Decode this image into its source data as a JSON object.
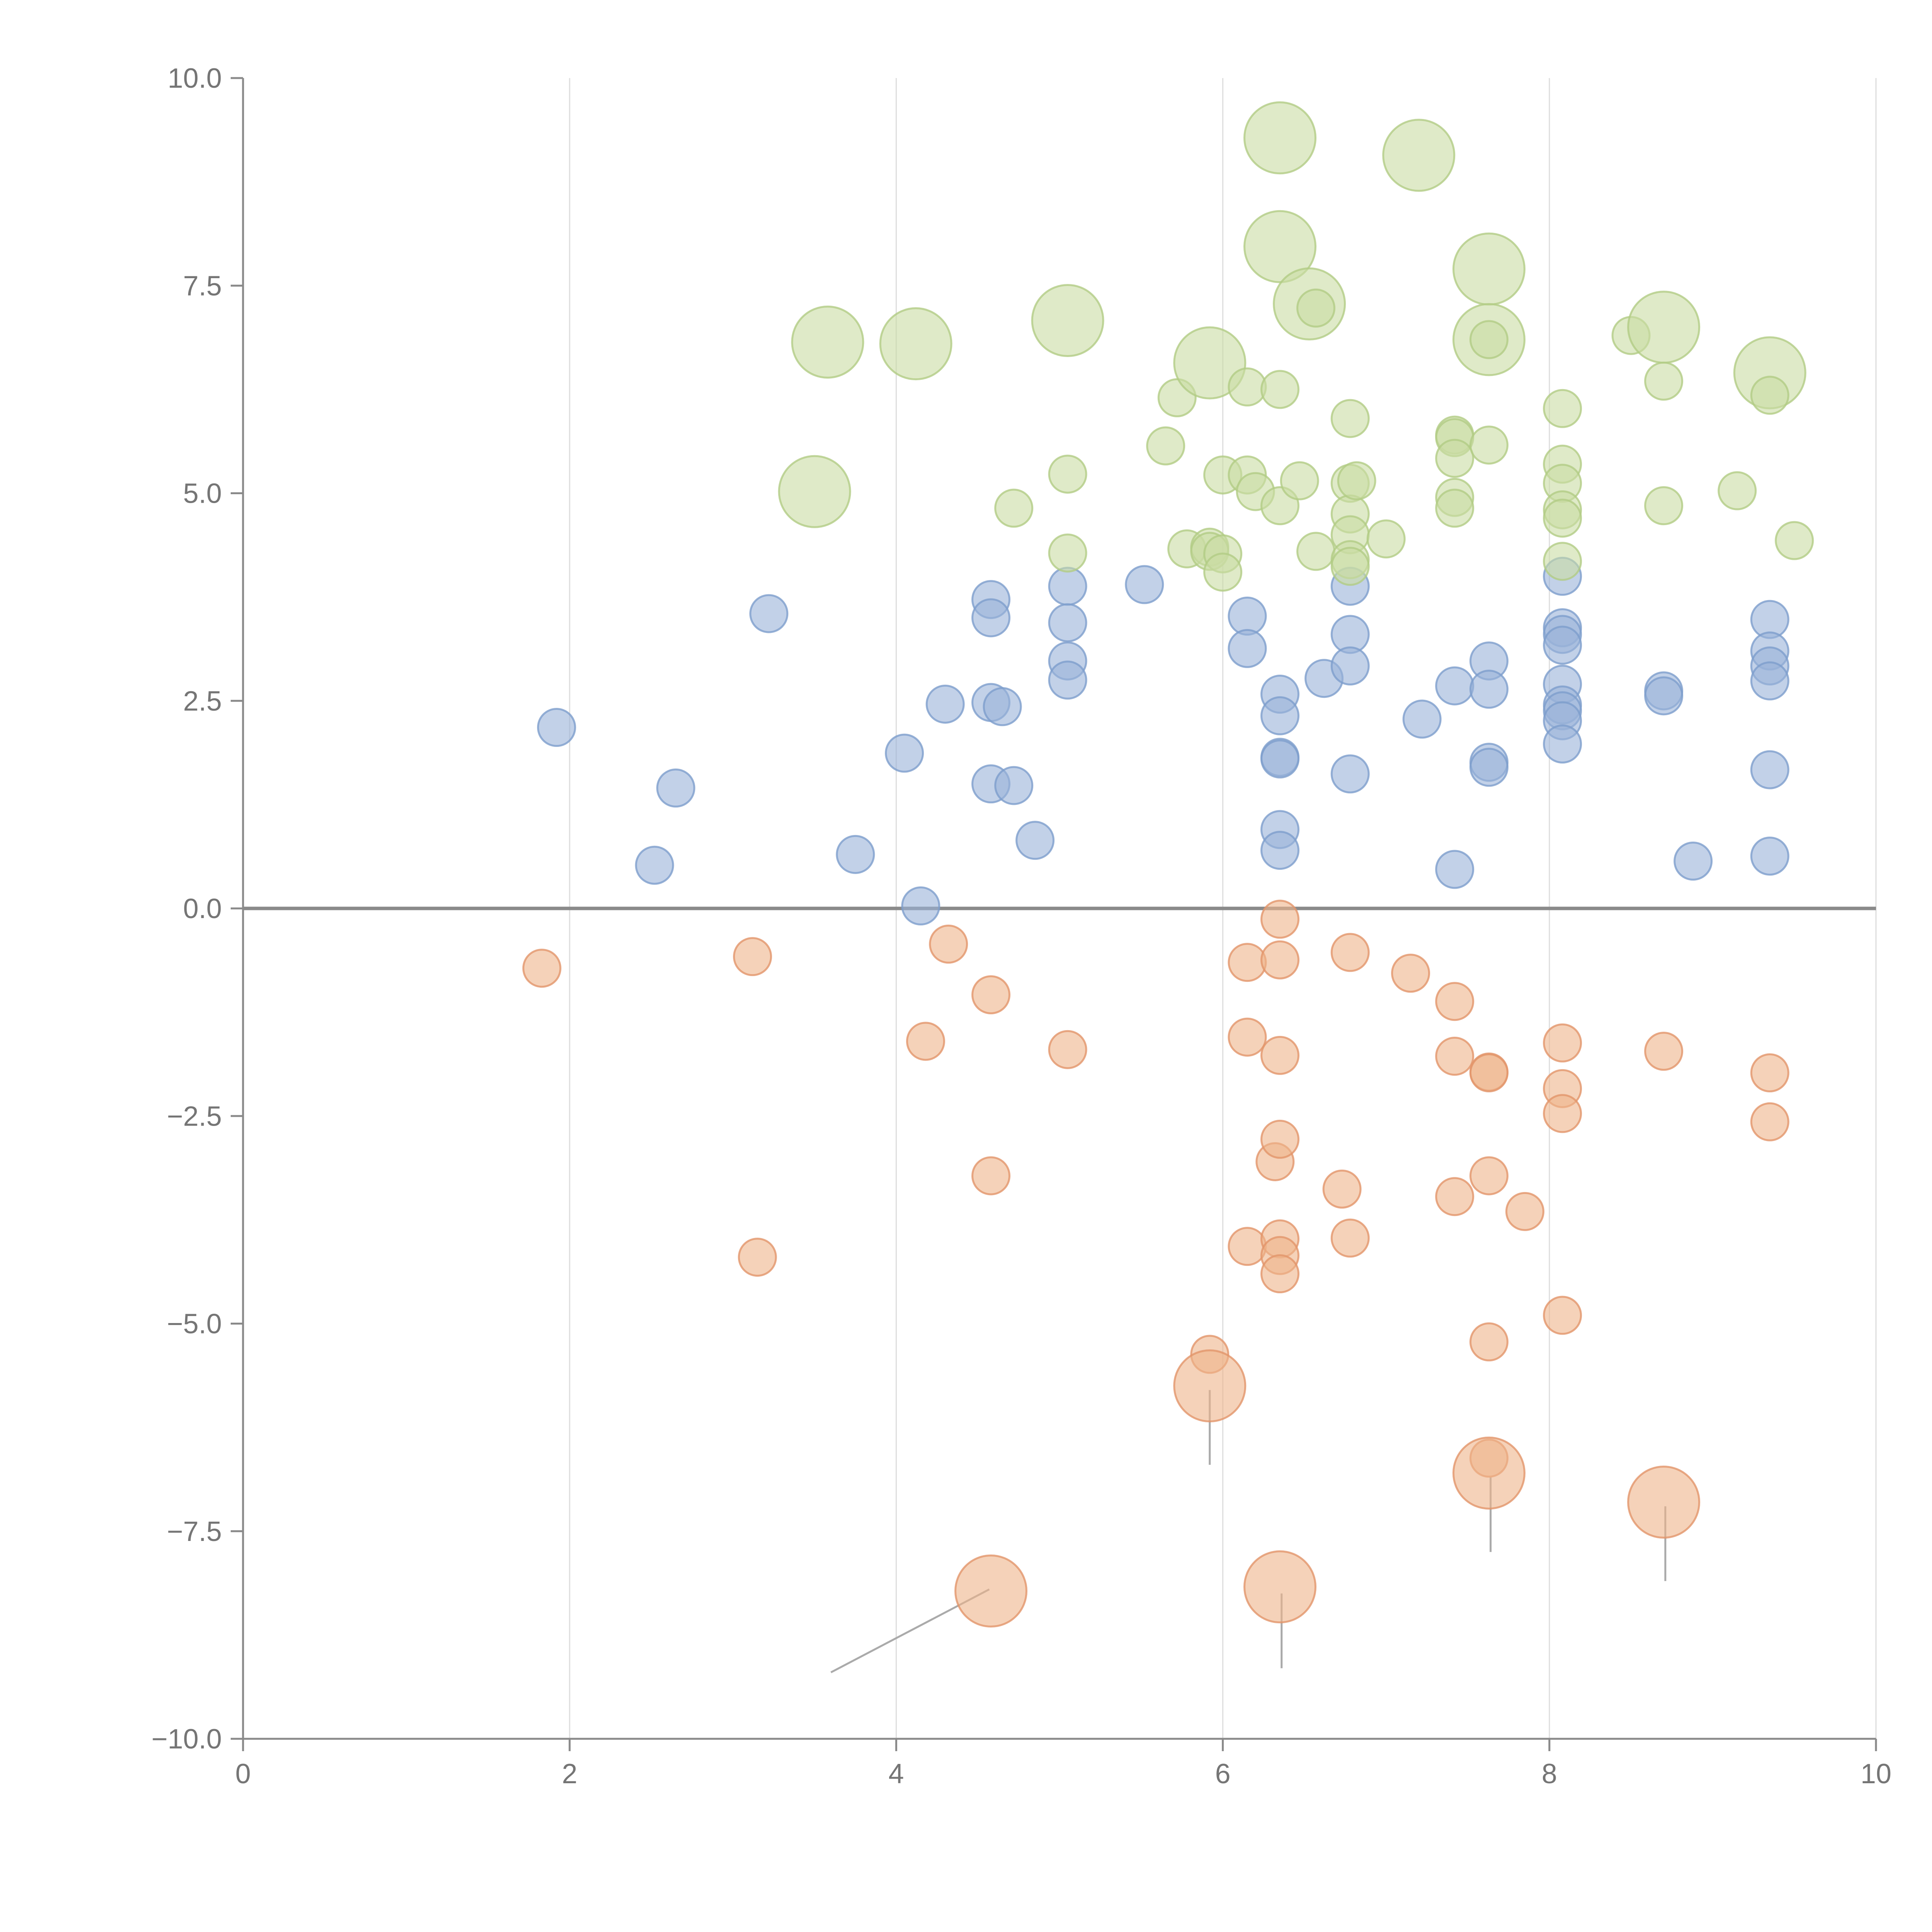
{
  "chart_data": {
    "type": "scatter",
    "title": "",
    "xlabel": "",
    "ylabel": "",
    "xlim": [
      0,
      10
    ],
    "ylim": [
      -10,
      10
    ],
    "x_ticks": [
      0,
      2,
      4,
      6,
      8,
      10
    ],
    "x_tick_labels": [
      "0",
      "2",
      "4",
      "6",
      "8",
      "10"
    ],
    "y_ticks": [
      -10,
      -7.5,
      -5,
      -2.5,
      0,
      2.5,
      5,
      7.5,
      10
    ],
    "y_tick_labels": [
      "−10.0",
      "−7.5",
      "−5.0",
      "−2.5",
      "0.0",
      "2.5",
      "5.0",
      "7.5",
      "10.0"
    ],
    "grid": "vertical lines at x ticks",
    "zero_line": true,
    "legend": "none",
    "series": [
      {
        "color": "#9ab3d9",
        "stroke": "#7d9dcc",
        "points": [
          [
            1.92,
            2.18,
            1
          ],
          [
            2.52,
            0.52,
            1
          ],
          [
            2.65,
            1.45,
            1
          ],
          [
            3.22,
            3.55,
            1
          ],
          [
            3.75,
            0.65,
            1
          ],
          [
            4.05,
            1.87,
            1
          ],
          [
            4.15,
            0.03,
            1
          ],
          [
            4.3,
            2.46,
            1
          ],
          [
            4.58,
            3.72,
            1
          ],
          [
            4.58,
            3.5,
            1
          ],
          [
            4.58,
            2.48,
            1
          ],
          [
            4.58,
            1.5,
            1
          ],
          [
            4.65,
            2.43,
            1
          ],
          [
            4.72,
            1.48,
            1
          ],
          [
            4.85,
            0.82,
            1
          ],
          [
            5.05,
            3.88,
            1
          ],
          [
            5.05,
            3.44,
            1
          ],
          [
            5.05,
            2.98,
            1
          ],
          [
            5.05,
            2.75,
            1
          ],
          [
            5.52,
            3.9,
            1
          ],
          [
            6.15,
            3.52,
            1
          ],
          [
            6.15,
            3.13,
            1
          ],
          [
            6.35,
            2.58,
            1
          ],
          [
            6.35,
            2.32,
            1
          ],
          [
            6.35,
            1.82,
            1
          ],
          [
            6.35,
            1.8,
            1
          ],
          [
            6.35,
            0.95,
            1
          ],
          [
            6.35,
            0.7,
            1
          ],
          [
            6.62,
            2.77,
            1
          ],
          [
            6.78,
            3.88,
            1
          ],
          [
            6.78,
            3.3,
            1
          ],
          [
            6.78,
            2.92,
            1
          ],
          [
            6.78,
            1.62,
            1
          ],
          [
            7.22,
            2.28,
            1
          ],
          [
            7.42,
            2.68,
            1
          ],
          [
            7.42,
            0.47,
            1
          ],
          [
            7.63,
            2.98,
            1
          ],
          [
            7.63,
            2.64,
            1
          ],
          [
            7.63,
            1.76,
            1
          ],
          [
            7.63,
            1.7,
            1
          ],
          [
            8.08,
            4.0,
            1
          ],
          [
            8.08,
            3.38,
            1
          ],
          [
            8.08,
            3.3,
            1
          ],
          [
            8.08,
            3.17,
            1
          ],
          [
            8.08,
            2.7,
            1
          ],
          [
            8.08,
            2.45,
            1
          ],
          [
            8.08,
            2.38,
            1
          ],
          [
            8.08,
            2.26,
            1
          ],
          [
            8.08,
            1.98,
            1
          ],
          [
            8.7,
            2.62,
            1
          ],
          [
            8.7,
            2.56,
            1
          ],
          [
            8.88,
            0.57,
            1
          ],
          [
            9.35,
            3.48,
            1
          ],
          [
            9.35,
            3.1,
            1
          ],
          [
            9.35,
            2.92,
            1
          ],
          [
            9.35,
            2.74,
            1
          ],
          [
            9.35,
            1.67,
            1
          ],
          [
            9.35,
            0.63,
            1
          ]
        ]
      },
      {
        "color": "#efb48a",
        "stroke": "#e2956a",
        "points": [
          [
            1.83,
            -0.72,
            1
          ],
          [
            3.12,
            -0.58,
            1
          ],
          [
            3.15,
            -4.2,
            1
          ],
          [
            4.18,
            -1.6,
            1
          ],
          [
            4.32,
            -0.43,
            1
          ],
          [
            4.58,
            -1.04,
            1
          ],
          [
            4.58,
            -3.22,
            1
          ],
          [
            4.58,
            -8.22,
            2
          ],
          [
            5.05,
            -1.7,
            1
          ],
          [
            5.92,
            -5.37,
            1
          ],
          [
            5.92,
            -5.75,
            2
          ],
          [
            6.15,
            -0.65,
            1
          ],
          [
            6.15,
            -1.55,
            1
          ],
          [
            6.15,
            -4.07,
            1
          ],
          [
            6.32,
            -3.05,
            1
          ],
          [
            6.35,
            -0.13,
            1
          ],
          [
            6.35,
            -0.62,
            1
          ],
          [
            6.35,
            -1.77,
            1
          ],
          [
            6.35,
            -2.78,
            1
          ],
          [
            6.35,
            -3.98,
            1
          ],
          [
            6.35,
            -4.18,
            1
          ],
          [
            6.35,
            -4.4,
            1
          ],
          [
            6.35,
            -8.17,
            2
          ],
          [
            6.73,
            -3.38,
            1
          ],
          [
            6.78,
            -0.53,
            1
          ],
          [
            6.78,
            -3.97,
            1
          ],
          [
            7.15,
            -0.78,
            1
          ],
          [
            7.42,
            -1.12,
            1
          ],
          [
            7.42,
            -1.78,
            1
          ],
          [
            7.42,
            -3.47,
            1
          ],
          [
            7.63,
            -1.97,
            1
          ],
          [
            7.63,
            -1.98,
            1
          ],
          [
            7.63,
            -3.22,
            1
          ],
          [
            7.63,
            -5.22,
            1
          ],
          [
            7.63,
            -6.62,
            1
          ],
          [
            7.63,
            -6.8,
            2
          ],
          [
            7.85,
            -3.65,
            1
          ],
          [
            8.08,
            -1.62,
            1
          ],
          [
            8.08,
            -2.17,
            1
          ],
          [
            8.08,
            -2.47,
            1
          ],
          [
            8.08,
            -4.9,
            1
          ],
          [
            8.7,
            -1.72,
            1
          ],
          [
            8.7,
            -7.15,
            2
          ],
          [
            9.35,
            -1.98,
            1
          ],
          [
            9.35,
            -2.57,
            1
          ]
        ]
      },
      {
        "color": "#c9dca4",
        "stroke": "#b1cc85",
        "points": [
          [
            3.5,
            5.02,
            2
          ],
          [
            3.58,
            6.82,
            2
          ],
          [
            4.12,
            6.8,
            2
          ],
          [
            4.72,
            4.82,
            1
          ],
          [
            5.05,
            7.08,
            2
          ],
          [
            5.05,
            5.23,
            1
          ],
          [
            5.05,
            4.28,
            1
          ],
          [
            5.65,
            5.57,
            1
          ],
          [
            5.72,
            6.15,
            1
          ],
          [
            5.78,
            4.33,
            1
          ],
          [
            5.92,
            6.57,
            2
          ],
          [
            5.92,
            4.35,
            1
          ],
          [
            5.92,
            4.3,
            1
          ],
          [
            6.0,
            4.27,
            1
          ],
          [
            6.0,
            4.05,
            1
          ],
          [
            6.0,
            5.22,
            1
          ],
          [
            6.15,
            5.22,
            1
          ],
          [
            6.15,
            6.28,
            1
          ],
          [
            6.2,
            5.02,
            1
          ],
          [
            6.35,
            9.28,
            2
          ],
          [
            6.35,
            7.97,
            2
          ],
          [
            6.35,
            6.25,
            1
          ],
          [
            6.35,
            4.85,
            1
          ],
          [
            6.47,
            5.15,
            1
          ],
          [
            6.53,
            7.28,
            2
          ],
          [
            6.57,
            4.3,
            1
          ],
          [
            6.57,
            7.23,
            1
          ],
          [
            6.78,
            5.9,
            1
          ],
          [
            6.78,
            5.12,
            1
          ],
          [
            6.78,
            4.75,
            1
          ],
          [
            6.78,
            4.5,
            1
          ],
          [
            6.78,
            4.2,
            1
          ],
          [
            6.78,
            4.12,
            1
          ],
          [
            6.82,
            5.15,
            1
          ],
          [
            7.0,
            4.45,
            1
          ],
          [
            7.2,
            9.07,
            2
          ],
          [
            7.42,
            5.7,
            1
          ],
          [
            7.42,
            5.67,
            1
          ],
          [
            7.42,
            5.42,
            1
          ],
          [
            7.42,
            4.95,
            1
          ],
          [
            7.42,
            4.82,
            1
          ],
          [
            7.63,
            7.7,
            2
          ],
          [
            7.63,
            6.85,
            2
          ],
          [
            7.63,
            6.85,
            1
          ],
          [
            7.63,
            5.58,
            1
          ],
          [
            8.08,
            6.02,
            1
          ],
          [
            8.08,
            5.35,
            1
          ],
          [
            8.08,
            5.12,
            1
          ],
          [
            8.08,
            4.8,
            1
          ],
          [
            8.08,
            4.7,
            1
          ],
          [
            8.08,
            4.18,
            1
          ],
          [
            8.5,
            6.9,
            1
          ],
          [
            8.7,
            7.0,
            2
          ],
          [
            8.7,
            6.35,
            1
          ],
          [
            8.7,
            4.85,
            1
          ],
          [
            9.15,
            5.03,
            1
          ],
          [
            9.35,
            6.45,
            2
          ],
          [
            9.35,
            6.18,
            1
          ],
          [
            9.5,
            4.43,
            1
          ]
        ]
      }
    ]
  }
}
